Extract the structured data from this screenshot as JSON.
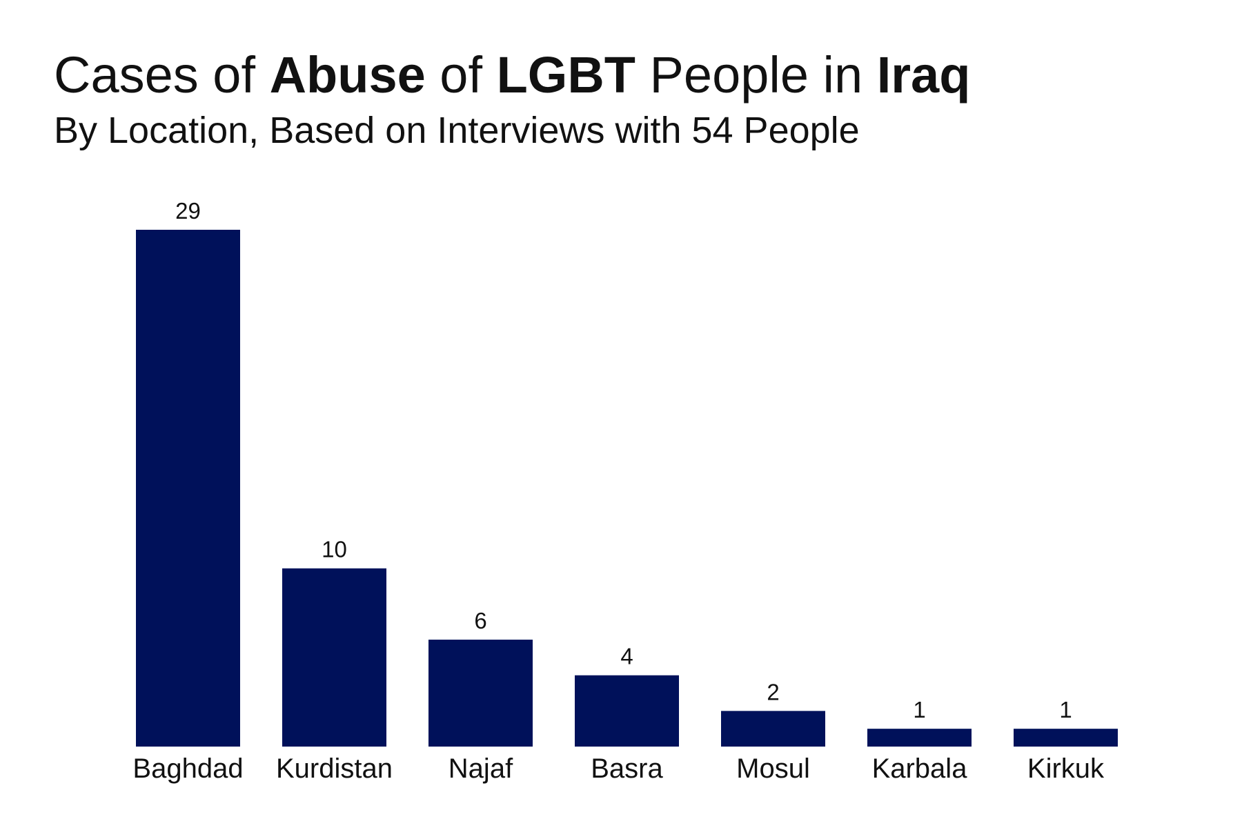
{
  "chart_data": {
    "type": "bar",
    "title_parts": [
      {
        "text": "Cases of ",
        "bold": false
      },
      {
        "text": "Abuse",
        "bold": true
      },
      {
        "text": " of ",
        "bold": false
      },
      {
        "text": "LGBT",
        "bold": true
      },
      {
        "text": " People in ",
        "bold": false
      },
      {
        "text": "Iraq",
        "bold": true
      }
    ],
    "title": "Cases of Abuse of LGBT People in Iraq",
    "subtitle": "By Location, Based on Interviews with 54 People",
    "categories": [
      "Baghdad",
      "Kurdistan",
      "Najaf",
      "Basra",
      "Mosul",
      "Karbala",
      "Kirkuk"
    ],
    "values": [
      29,
      10,
      6,
      4,
      2,
      1,
      1
    ],
    "xlabel": "",
    "ylabel": "",
    "ylim": [
      0,
      29
    ],
    "grid": false,
    "data_labels": true,
    "bar_color": "#00115a"
  }
}
